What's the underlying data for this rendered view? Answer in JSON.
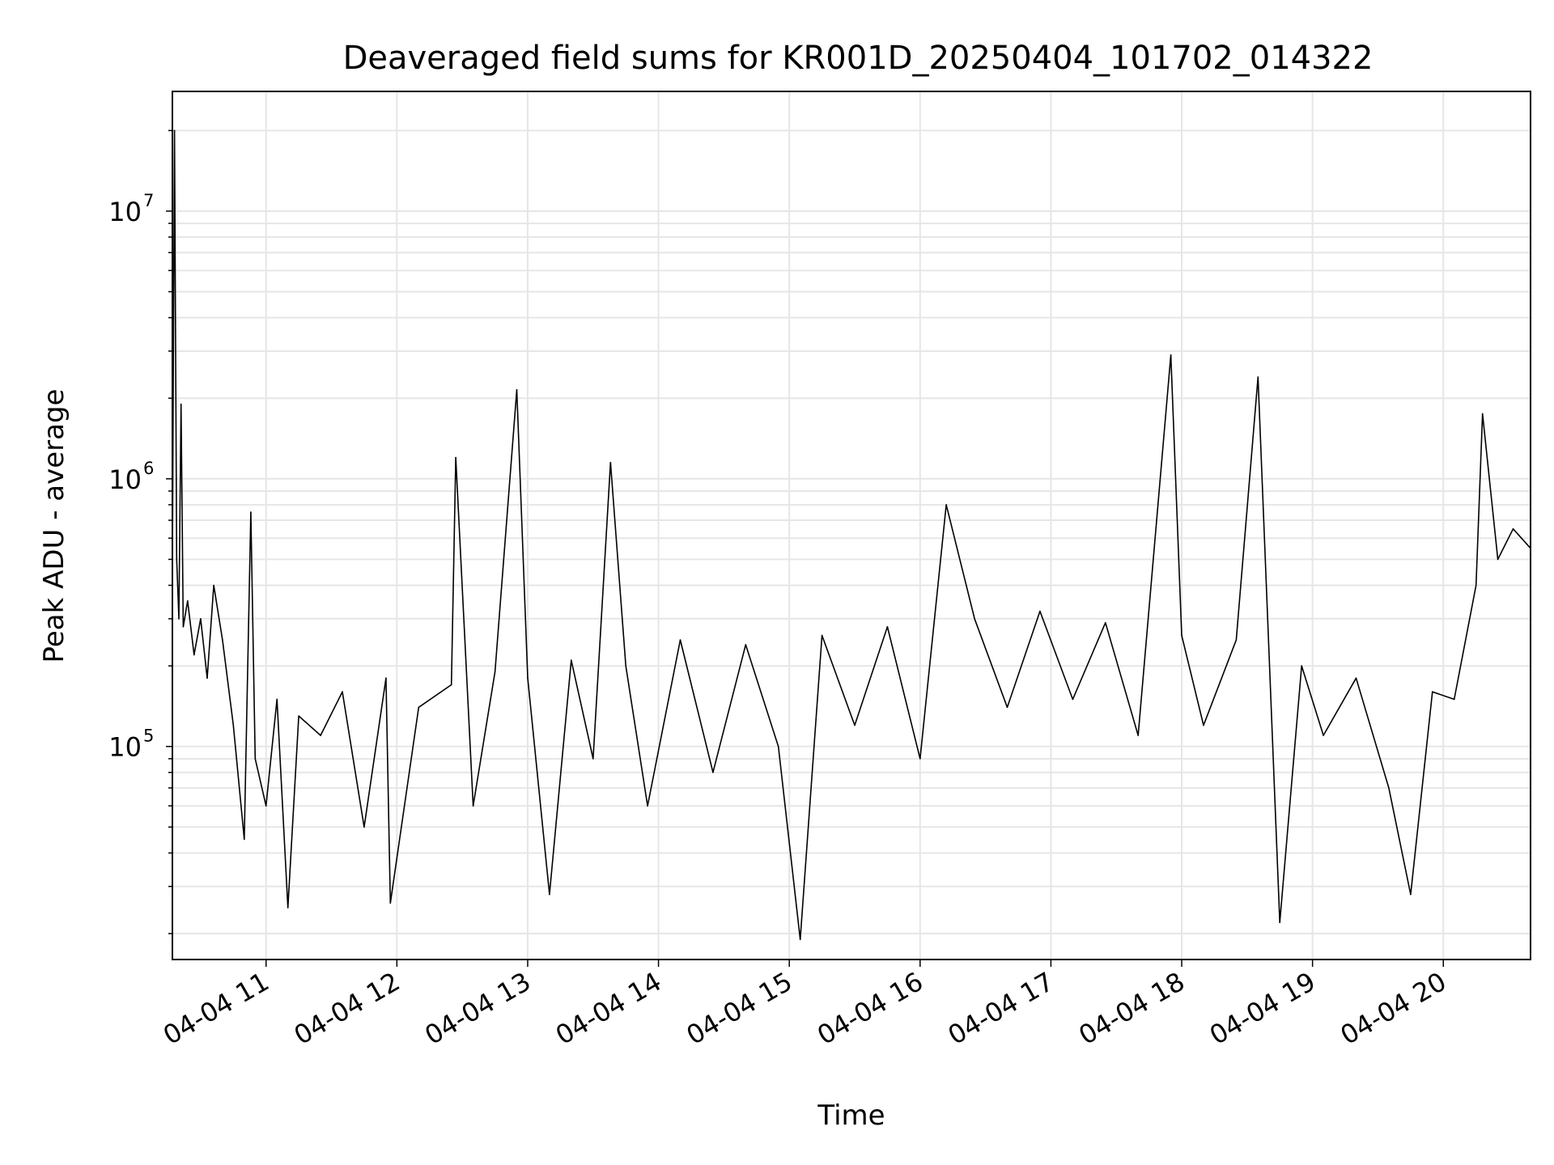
{
  "chart_data": {
    "type": "line",
    "title": "Deaveraged field sums for KR001D_20250404_101702_014322",
    "xlabel": "Time",
    "ylabel": "Peak ADU - average",
    "yscale": "log",
    "ylim": [
      16000,
      28000000
    ],
    "xlim": [
      "2025-04-04T10:17:02",
      "2025-04-04T20:40:00"
    ],
    "xticks": [
      {
        "t": "2025-04-04T11:00",
        "label": "04-04 11"
      },
      {
        "t": "2025-04-04T12:00",
        "label": "04-04 12"
      },
      {
        "t": "2025-04-04T13:00",
        "label": "04-04 13"
      },
      {
        "t": "2025-04-04T14:00",
        "label": "04-04 14"
      },
      {
        "t": "2025-04-04T15:00",
        "label": "04-04 15"
      },
      {
        "t": "2025-04-04T16:00",
        "label": "04-04 16"
      },
      {
        "t": "2025-04-04T17:00",
        "label": "04-04 17"
      },
      {
        "t": "2025-04-04T18:00",
        "label": "04-04 18"
      },
      {
        "t": "2025-04-04T19:00",
        "label": "04-04 19"
      },
      {
        "t": "2025-04-04T20:00",
        "label": "04-04 20"
      }
    ],
    "yticks": [
      {
        "value": 100000,
        "base": "10",
        "exp": "5"
      },
      {
        "value": 1000000,
        "base": "10",
        "exp": "6"
      },
      {
        "value": 10000000,
        "base": "10",
        "exp": "7"
      }
    ],
    "grid": true,
    "line_color": "#000000",
    "grid_color": "#e6e6e6",
    "series": [
      {
        "points": [
          [
            "2025-04-04T10:17",
            400000
          ],
          [
            "2025-04-04T10:18",
            20000000
          ],
          [
            "2025-04-04T10:19",
            500000
          ],
          [
            "2025-04-04T10:20",
            300000
          ],
          [
            "2025-04-04T10:21",
            1900000
          ],
          [
            "2025-04-04T10:22",
            280000
          ],
          [
            "2025-04-04T10:24",
            350000
          ],
          [
            "2025-04-04T10:27",
            220000
          ],
          [
            "2025-04-04T10:30",
            300000
          ],
          [
            "2025-04-04T10:33",
            180000
          ],
          [
            "2025-04-04T10:36",
            400000
          ],
          [
            "2025-04-04T10:40",
            250000
          ],
          [
            "2025-04-04T10:45",
            120000
          ],
          [
            "2025-04-04T10:50",
            45000
          ],
          [
            "2025-04-04T10:53",
            750000
          ],
          [
            "2025-04-04T10:55",
            90000
          ],
          [
            "2025-04-04T11:00",
            60000
          ],
          [
            "2025-04-04T11:05",
            150000
          ],
          [
            "2025-04-04T11:10",
            25000
          ],
          [
            "2025-04-04T11:15",
            130000
          ],
          [
            "2025-04-04T11:25",
            110000
          ],
          [
            "2025-04-04T11:35",
            160000
          ],
          [
            "2025-04-04T11:45",
            50000
          ],
          [
            "2025-04-04T11:55",
            180000
          ],
          [
            "2025-04-04T11:57",
            26000
          ],
          [
            "2025-04-04T12:10",
            140000
          ],
          [
            "2025-04-04T12:25",
            170000
          ],
          [
            "2025-04-04T12:35",
            60000
          ],
          [
            "2025-04-04T12:45",
            190000
          ],
          [
            "2025-04-04T12:27",
            1200000
          ],
          [
            "2025-04-04T12:55",
            2150000
          ],
          [
            "2025-04-04T13:00",
            180000
          ],
          [
            "2025-04-04T13:10",
            28000
          ],
          [
            "2025-04-04T13:20",
            210000
          ],
          [
            "2025-04-04T13:30",
            90000
          ],
          [
            "2025-04-04T13:38",
            1150000
          ],
          [
            "2025-04-04T13:45",
            200000
          ],
          [
            "2025-04-04T13:55",
            60000
          ],
          [
            "2025-04-04T14:10",
            250000
          ],
          [
            "2025-04-04T14:25",
            80000
          ],
          [
            "2025-04-04T14:40",
            240000
          ],
          [
            "2025-04-04T14:55",
            100000
          ],
          [
            "2025-04-04T15:05",
            19000
          ],
          [
            "2025-04-04T15:15",
            260000
          ],
          [
            "2025-04-04T15:30",
            120000
          ],
          [
            "2025-04-04T15:45",
            280000
          ],
          [
            "2025-04-04T16:00",
            90000
          ],
          [
            "2025-04-04T16:12",
            800000
          ],
          [
            "2025-04-04T16:25",
            300000
          ],
          [
            "2025-04-04T16:40",
            140000
          ],
          [
            "2025-04-04T16:55",
            320000
          ],
          [
            "2025-04-04T17:10",
            150000
          ],
          [
            "2025-04-04T17:25",
            290000
          ],
          [
            "2025-04-04T17:40",
            110000
          ],
          [
            "2025-04-04T17:55",
            2900000
          ],
          [
            "2025-04-04T18:00",
            260000
          ],
          [
            "2025-04-04T18:10",
            120000
          ],
          [
            "2025-04-04T18:25",
            250000
          ],
          [
            "2025-04-04T18:35",
            2400000
          ],
          [
            "2025-04-04T18:45",
            22000
          ],
          [
            "2025-04-04T18:55",
            200000
          ],
          [
            "2025-04-04T19:05",
            110000
          ],
          [
            "2025-04-04T19:20",
            180000
          ],
          [
            "2025-04-04T19:35",
            70000
          ],
          [
            "2025-04-04T19:45",
            28000
          ],
          [
            "2025-04-04T19:55",
            160000
          ],
          [
            "2025-04-04T20:05",
            150000
          ],
          [
            "2025-04-04T20:15",
            400000
          ],
          [
            "2025-04-04T20:18",
            1750000
          ],
          [
            "2025-04-04T20:25",
            500000
          ],
          [
            "2025-04-04T20:32",
            650000
          ],
          [
            "2025-04-04T20:40",
            550000
          ]
        ]
      }
    ]
  }
}
